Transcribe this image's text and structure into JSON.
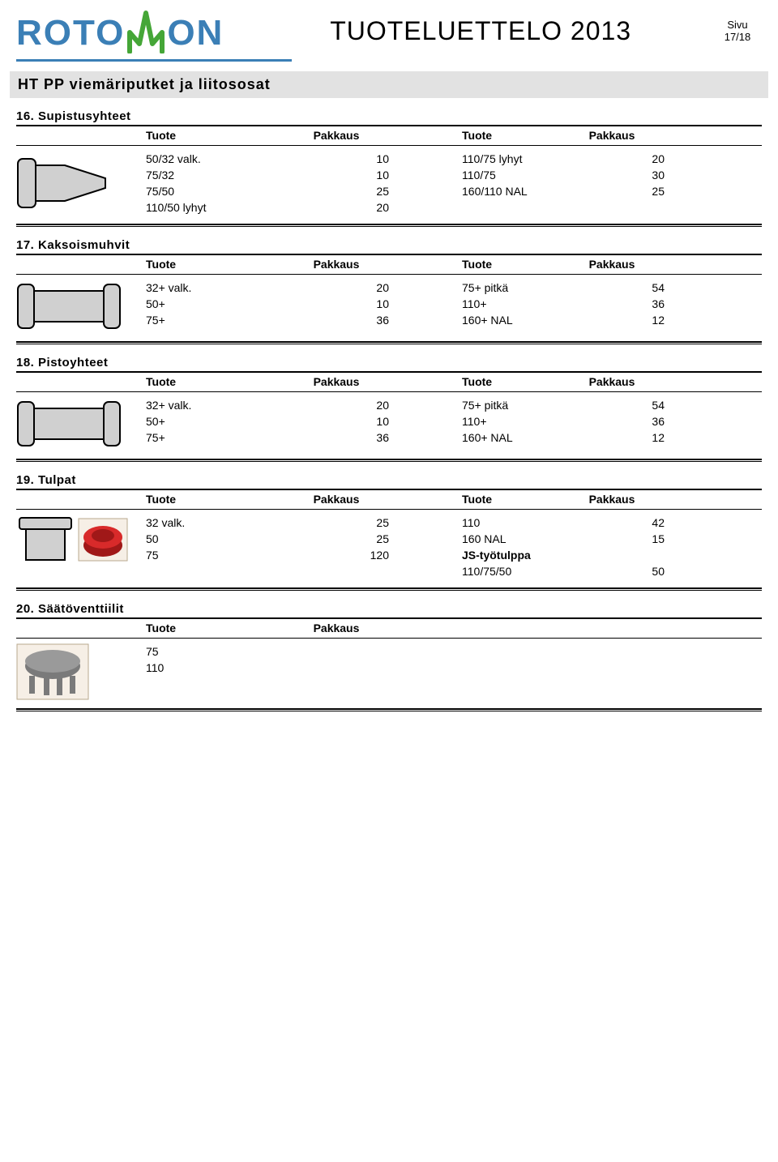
{
  "header": {
    "logo_part1": "ROTO",
    "logo_part2": "ON",
    "title": "TUOTELUETTELO 2013",
    "page_label": "Sivu",
    "page_number": "17/18"
  },
  "gray_bar": "HT PP viemäriputket ja liitososat",
  "col_labels": {
    "tuote": "Tuote",
    "pakkaus": "Pakkaus"
  },
  "sections": {
    "s16": {
      "title": "16. Supistusyhteet",
      "left": [
        {
          "t": "50/32 valk.",
          "p": "10"
        },
        {
          "t": "75/32",
          "p": "10"
        },
        {
          "t": "75/50",
          "p": "25"
        },
        {
          "t": "110/50 lyhyt",
          "p": "20"
        }
      ],
      "right": [
        {
          "t": "110/75 lyhyt",
          "p": "20"
        },
        {
          "t": "110/75",
          "p": "30"
        },
        {
          "t": "160/110 NAL",
          "p": "25"
        }
      ]
    },
    "s17": {
      "title": "17. Kaksoismuhvit",
      "left": [
        {
          "t": "32+ valk.",
          "p": "20"
        },
        {
          "t": "50+",
          "p": "10"
        },
        {
          "t": "75+",
          "p": "36"
        }
      ],
      "right": [
        {
          "t": "75+ pitkä",
          "p": "54"
        },
        {
          "t": "110+",
          "p": "36"
        },
        {
          "t": "160+ NAL",
          "p": "12"
        }
      ]
    },
    "s18": {
      "title": "18. Pistoyhteet",
      "left": [
        {
          "t": "32+ valk.",
          "p": "20"
        },
        {
          "t": "50+",
          "p": "10"
        },
        {
          "t": "75+",
          "p": "36"
        }
      ],
      "right": [
        {
          "t": "75+ pitkä",
          "p": "54"
        },
        {
          "t": "110+",
          "p": "36"
        },
        {
          "t": "160+ NAL",
          "p": "12"
        }
      ]
    },
    "s19": {
      "title": "19. Tulpat",
      "left": [
        {
          "t": "32 valk.",
          "p": "25"
        },
        {
          "t": "50",
          "p": "25"
        },
        {
          "t": "75",
          "p": "120"
        }
      ],
      "right": [
        {
          "t": "110",
          "p": "42"
        },
        {
          "t": "160 NAL",
          "p": "15"
        },
        {
          "t": "JS-työtulppa",
          "p": "",
          "bold": true
        },
        {
          "t": "110/75/50",
          "p": "50"
        }
      ]
    },
    "s20": {
      "title": "20. Säätöventtiilit",
      "left": [
        {
          "t": "75",
          "p": ""
        },
        {
          "t": "110",
          "p": ""
        }
      ]
    }
  }
}
